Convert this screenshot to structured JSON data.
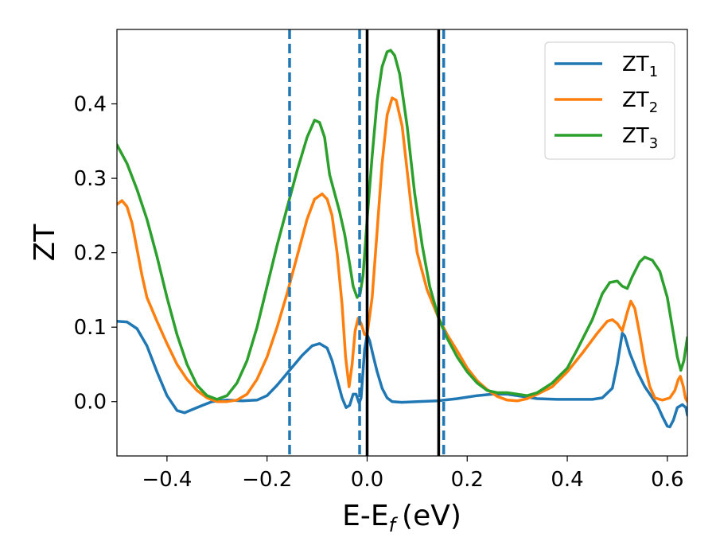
{
  "chart_data": {
    "type": "line",
    "xlabel": "E-E",
    "xlabel_sub": "f",
    "xlabel_unit": "(eV)",
    "ylabel": "ZT",
    "xlim": [
      -0.5,
      0.64
    ],
    "ylim": [
      -0.073,
      0.5
    ],
    "xticks": [
      -0.4,
      -0.2,
      0.0,
      0.2,
      0.4,
      0.6
    ],
    "xtick_labels": [
      "−0.4",
      "−0.2",
      "0.0",
      "0.2",
      "0.4",
      "0.6"
    ],
    "yticks": [
      0.0,
      0.1,
      0.2,
      0.3,
      0.4
    ],
    "ytick_labels": [
      "0.0",
      "0.1",
      "0.2",
      "0.3",
      "0.4"
    ],
    "grid": false,
    "legend_position": "top-right",
    "vertical_lines": [
      {
        "x": -0.155,
        "style": "dashed",
        "color": "#1f77b4"
      },
      {
        "x": -0.015,
        "style": "dashed",
        "color": "#1f77b4"
      },
      {
        "x": 0.0,
        "style": "solid",
        "color": "#000000"
      },
      {
        "x": 0.143,
        "style": "solid",
        "color": "#000000"
      },
      {
        "x": 0.153,
        "style": "dashed",
        "color": "#1f77b4"
      }
    ],
    "series": [
      {
        "name": "ZT",
        "name_sub": "1",
        "color": "#1f77b4",
        "points": [
          [
            -0.5,
            0.108
          ],
          [
            -0.48,
            0.107
          ],
          [
            -0.46,
            0.098
          ],
          [
            -0.44,
            0.075
          ],
          [
            -0.42,
            0.04
          ],
          [
            -0.4,
            0.008
          ],
          [
            -0.38,
            -0.012
          ],
          [
            -0.365,
            -0.015
          ],
          [
            -0.34,
            -0.008
          ],
          [
            -0.31,
            0.0
          ],
          [
            -0.28,
            0.002
          ],
          [
            -0.25,
            0.001
          ],
          [
            -0.22,
            0.002
          ],
          [
            -0.2,
            0.008
          ],
          [
            -0.18,
            0.022
          ],
          [
            -0.155,
            0.042
          ],
          [
            -0.13,
            0.062
          ],
          [
            -0.11,
            0.075
          ],
          [
            -0.095,
            0.078
          ],
          [
            -0.08,
            0.072
          ],
          [
            -0.07,
            0.055
          ],
          [
            -0.06,
            0.03
          ],
          [
            -0.05,
            0.005
          ],
          [
            -0.042,
            -0.008
          ],
          [
            -0.035,
            -0.005
          ],
          [
            -0.028,
            0.01
          ],
          [
            -0.022,
            0.01
          ],
          [
            -0.016,
            -0.002
          ],
          [
            -0.012,
            0.005
          ],
          [
            -0.005,
            0.07
          ],
          [
            0.0,
            0.09
          ],
          [
            0.005,
            0.082
          ],
          [
            0.012,
            0.062
          ],
          [
            0.02,
            0.04
          ],
          [
            0.03,
            0.018
          ],
          [
            0.04,
            0.005
          ],
          [
            0.05,
            0.0
          ],
          [
            0.07,
            -0.001
          ],
          [
            0.1,
            0.0
          ],
          [
            0.14,
            0.001
          ],
          [
            0.18,
            0.004
          ],
          [
            0.22,
            0.008
          ],
          [
            0.25,
            0.01
          ],
          [
            0.28,
            0.01
          ],
          [
            0.31,
            0.007
          ],
          [
            0.34,
            0.004
          ],
          [
            0.38,
            0.003
          ],
          [
            0.42,
            0.003
          ],
          [
            0.45,
            0.003
          ],
          [
            0.47,
            0.005
          ],
          [
            0.49,
            0.018
          ],
          [
            0.5,
            0.05
          ],
          [
            0.51,
            0.092
          ],
          [
            0.515,
            0.088
          ],
          [
            0.525,
            0.065
          ],
          [
            0.54,
            0.04
          ],
          [
            0.555,
            0.02
          ],
          [
            0.57,
            0.005
          ],
          [
            0.58,
            -0.005
          ],
          [
            0.59,
            -0.02
          ],
          [
            0.6,
            -0.033
          ],
          [
            0.605,
            -0.034
          ],
          [
            0.612,
            -0.025
          ],
          [
            0.62,
            -0.008
          ],
          [
            0.63,
            -0.004
          ],
          [
            0.637,
            -0.008
          ],
          [
            0.64,
            -0.018
          ]
        ]
      },
      {
        "name": "ZT",
        "name_sub": "2",
        "color": "#ff7f0e",
        "points": [
          [
            -0.5,
            0.265
          ],
          [
            -0.49,
            0.27
          ],
          [
            -0.48,
            0.262
          ],
          [
            -0.47,
            0.24
          ],
          [
            -0.46,
            0.205
          ],
          [
            -0.45,
            0.17
          ],
          [
            -0.44,
            0.14
          ],
          [
            -0.42,
            0.108
          ],
          [
            -0.4,
            0.078
          ],
          [
            -0.38,
            0.05
          ],
          [
            -0.36,
            0.03
          ],
          [
            -0.34,
            0.015
          ],
          [
            -0.32,
            0.005
          ],
          [
            -0.3,
            0.0
          ],
          [
            -0.28,
            0.0
          ],
          [
            -0.26,
            0.002
          ],
          [
            -0.24,
            0.01
          ],
          [
            -0.22,
            0.03
          ],
          [
            -0.2,
            0.06
          ],
          [
            -0.18,
            0.1
          ],
          [
            -0.16,
            0.145
          ],
          [
            -0.14,
            0.195
          ],
          [
            -0.12,
            0.245
          ],
          [
            -0.105,
            0.272
          ],
          [
            -0.09,
            0.279
          ],
          [
            -0.08,
            0.272
          ],
          [
            -0.07,
            0.25
          ],
          [
            -0.06,
            0.2
          ],
          [
            -0.05,
            0.13
          ],
          [
            -0.043,
            0.06
          ],
          [
            -0.036,
            0.02
          ],
          [
            -0.03,
            0.05
          ],
          [
            -0.024,
            0.095
          ],
          [
            -0.018,
            0.112
          ],
          [
            -0.012,
            0.105
          ],
          [
            -0.005,
            0.09
          ],
          [
            0.0,
            0.09
          ],
          [
            0.01,
            0.14
          ],
          [
            0.02,
            0.23
          ],
          [
            0.03,
            0.32
          ],
          [
            0.04,
            0.385
          ],
          [
            0.05,
            0.408
          ],
          [
            0.058,
            0.405
          ],
          [
            0.07,
            0.37
          ],
          [
            0.08,
            0.31
          ],
          [
            0.09,
            0.25
          ],
          [
            0.1,
            0.2
          ],
          [
            0.12,
            0.15
          ],
          [
            0.143,
            0.112
          ],
          [
            0.16,
            0.09
          ],
          [
            0.18,
            0.068
          ],
          [
            0.2,
            0.045
          ],
          [
            0.22,
            0.028
          ],
          [
            0.24,
            0.016
          ],
          [
            0.26,
            0.007
          ],
          [
            0.28,
            0.002
          ],
          [
            0.3,
            0.001
          ],
          [
            0.32,
            0.004
          ],
          [
            0.34,
            0.01
          ],
          [
            0.37,
            0.02
          ],
          [
            0.4,
            0.04
          ],
          [
            0.43,
            0.065
          ],
          [
            0.46,
            0.092
          ],
          [
            0.48,
            0.108
          ],
          [
            0.49,
            0.11
          ],
          [
            0.5,
            0.105
          ],
          [
            0.51,
            0.095
          ],
          [
            0.52,
            0.12
          ],
          [
            0.527,
            0.135
          ],
          [
            0.535,
            0.125
          ],
          [
            0.545,
            0.09
          ],
          [
            0.555,
            0.05
          ],
          [
            0.565,
            0.02
          ],
          [
            0.575,
            0.005
          ],
          [
            0.59,
            0.002
          ],
          [
            0.605,
            0.005
          ],
          [
            0.615,
            0.015
          ],
          [
            0.622,
            0.03
          ],
          [
            0.626,
            0.034
          ],
          [
            0.632,
            0.02
          ],
          [
            0.636,
            0.005
          ],
          [
            0.64,
            0.0
          ]
        ]
      },
      {
        "name": "ZT",
        "name_sub": "3",
        "color": "#2ca02c",
        "points": [
          [
            -0.5,
            0.345
          ],
          [
            -0.48,
            0.32
          ],
          [
            -0.46,
            0.285
          ],
          [
            -0.44,
            0.245
          ],
          [
            -0.42,
            0.195
          ],
          [
            -0.4,
            0.14
          ],
          [
            -0.38,
            0.09
          ],
          [
            -0.36,
            0.05
          ],
          [
            -0.34,
            0.022
          ],
          [
            -0.32,
            0.008
          ],
          [
            -0.3,
            0.003
          ],
          [
            -0.28,
            0.008
          ],
          [
            -0.26,
            0.025
          ],
          [
            -0.24,
            0.055
          ],
          [
            -0.22,
            0.1
          ],
          [
            -0.2,
            0.155
          ],
          [
            -0.18,
            0.21
          ],
          [
            -0.16,
            0.26
          ],
          [
            -0.14,
            0.31
          ],
          [
            -0.12,
            0.355
          ],
          [
            -0.105,
            0.378
          ],
          [
            -0.095,
            0.375
          ],
          [
            -0.085,
            0.355
          ],
          [
            -0.075,
            0.305
          ],
          [
            -0.065,
            0.28
          ],
          [
            -0.055,
            0.255
          ],
          [
            -0.045,
            0.225
          ],
          [
            -0.035,
            0.185
          ],
          [
            -0.028,
            0.155
          ],
          [
            -0.02,
            0.14
          ],
          [
            -0.014,
            0.145
          ],
          [
            -0.008,
            0.17
          ],
          [
            0.0,
            0.245
          ],
          [
            0.01,
            0.33
          ],
          [
            0.02,
            0.405
          ],
          [
            0.03,
            0.45
          ],
          [
            0.04,
            0.47
          ],
          [
            0.047,
            0.472
          ],
          [
            0.055,
            0.465
          ],
          [
            0.065,
            0.44
          ],
          [
            0.08,
            0.37
          ],
          [
            0.095,
            0.28
          ],
          [
            0.11,
            0.21
          ],
          [
            0.125,
            0.155
          ],
          [
            0.143,
            0.112
          ],
          [
            0.16,
            0.085
          ],
          [
            0.18,
            0.06
          ],
          [
            0.2,
            0.04
          ],
          [
            0.22,
            0.025
          ],
          [
            0.24,
            0.015
          ],
          [
            0.26,
            0.012
          ],
          [
            0.28,
            0.012
          ],
          [
            0.3,
            0.01
          ],
          [
            0.32,
            0.008
          ],
          [
            0.34,
            0.012
          ],
          [
            0.37,
            0.025
          ],
          [
            0.4,
            0.045
          ],
          [
            0.42,
            0.07
          ],
          [
            0.45,
            0.11
          ],
          [
            0.47,
            0.145
          ],
          [
            0.485,
            0.16
          ],
          [
            0.5,
            0.162
          ],
          [
            0.51,
            0.155
          ],
          [
            0.52,
            0.152
          ],
          [
            0.53,
            0.168
          ],
          [
            0.545,
            0.188
          ],
          [
            0.555,
            0.194
          ],
          [
            0.57,
            0.19
          ],
          [
            0.585,
            0.175
          ],
          [
            0.6,
            0.14
          ],
          [
            0.61,
            0.1
          ],
          [
            0.62,
            0.06
          ],
          [
            0.627,
            0.042
          ],
          [
            0.633,
            0.055
          ],
          [
            0.64,
            0.086
          ]
        ]
      }
    ]
  }
}
